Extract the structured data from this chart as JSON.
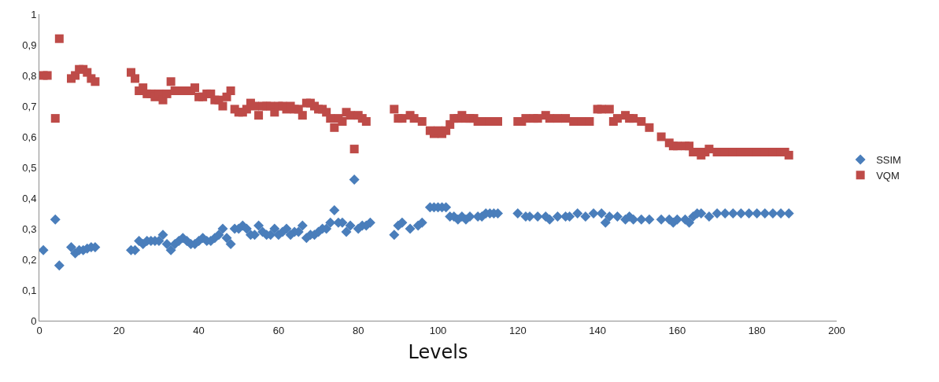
{
  "chart_data": {
    "type": "scatter",
    "xlabel": "Levels",
    "xlim": [
      0,
      200
    ],
    "xticks": [
      0,
      20,
      40,
      60,
      80,
      100,
      120,
      140,
      160,
      180,
      200
    ],
    "ylim": [
      0,
      1
    ],
    "yticks": [
      0,
      {
        "value": 0.1,
        "label": "0,1"
      },
      {
        "value": 0.2,
        "label": "0,2"
      },
      {
        "value": 0.3,
        "label": "0,3"
      },
      {
        "value": 0.4,
        "label": "0,4"
      },
      {
        "value": 0.5,
        "label": "0,5"
      },
      {
        "value": 0.6,
        "label": "0,6"
      },
      {
        "value": 0.7,
        "label": "0,7"
      },
      {
        "value": 0.8,
        "label": "0,8"
      },
      {
        "value": 0.9,
        "label": "0,9"
      },
      1
    ],
    "grid": false,
    "legend": "right",
    "series": [
      {
        "name": "SSIM",
        "color": "#4a7ebb",
        "marker": "diamond",
        "x": [
          1,
          4,
          5,
          8,
          9,
          10,
          11,
          12,
          13,
          14,
          23,
          24,
          25,
          26,
          27,
          28,
          29,
          30,
          31,
          32,
          33,
          34,
          35,
          36,
          37,
          38,
          39,
          40,
          41,
          42,
          43,
          44,
          45,
          46,
          47,
          48,
          49,
          50,
          51,
          52,
          53,
          54,
          55,
          56,
          57,
          58,
          59,
          60,
          61,
          62,
          63,
          64,
          65,
          66,
          67,
          68,
          69,
          70,
          71,
          72,
          73,
          74,
          75,
          76,
          77,
          78,
          79,
          80,
          81,
          82,
          83,
          89,
          90,
          91,
          93,
          95,
          96,
          98,
          99,
          100,
          101,
          102,
          103,
          104,
          105,
          106,
          107,
          108,
          110,
          111,
          112,
          113,
          114,
          115,
          120,
          122,
          123,
          125,
          127,
          128,
          130,
          132,
          133,
          135,
          137,
          139,
          141,
          142,
          143,
          145,
          147,
          148,
          149,
          151,
          153,
          156,
          158,
          159,
          160,
          162,
          163,
          164,
          165,
          166,
          168,
          170,
          172,
          174,
          176,
          178,
          180,
          182,
          184,
          186,
          188
        ],
        "values": [
          0.23,
          0.33,
          0.18,
          0.24,
          0.22,
          0.23,
          0.23,
          0.235,
          0.24,
          0.24,
          0.23,
          0.23,
          0.26,
          0.25,
          0.26,
          0.26,
          0.26,
          0.26,
          0.28,
          0.25,
          0.23,
          0.25,
          0.26,
          0.27,
          0.26,
          0.25,
          0.25,
          0.26,
          0.27,
          0.26,
          0.26,
          0.27,
          0.28,
          0.3,
          0.27,
          0.25,
          0.3,
          0.3,
          0.31,
          0.3,
          0.28,
          0.28,
          0.31,
          0.29,
          0.28,
          0.28,
          0.3,
          0.28,
          0.29,
          0.3,
          0.28,
          0.29,
          0.29,
          0.31,
          0.27,
          0.28,
          0.28,
          0.29,
          0.3,
          0.3,
          0.32,
          0.36,
          0.32,
          0.32,
          0.29,
          0.31,
          0.46,
          0.3,
          0.31,
          0.31,
          0.32,
          0.28,
          0.31,
          0.32,
          0.3,
          0.31,
          0.32,
          0.37,
          0.37,
          0.37,
          0.37,
          0.37,
          0.34,
          0.34,
          0.33,
          0.34,
          0.33,
          0.34,
          0.34,
          0.34,
          0.35,
          0.35,
          0.35,
          0.35,
          0.35,
          0.34,
          0.34,
          0.34,
          0.34,
          0.33,
          0.34,
          0.34,
          0.34,
          0.35,
          0.34,
          0.35,
          0.35,
          0.32,
          0.34,
          0.34,
          0.33,
          0.34,
          0.33,
          0.33,
          0.33,
          0.33,
          0.33,
          0.32,
          0.33,
          0.33,
          0.32,
          0.34,
          0.35,
          0.35,
          0.34,
          0.35,
          0.35,
          0.35,
          0.35,
          0.35,
          0.35,
          0.35,
          0.35,
          0.35,
          0.35
        ]
      },
      {
        "name": "VQM",
        "color": "#be4b48",
        "marker": "square",
        "x": [
          1,
          2,
          4,
          5,
          8,
          9,
          10,
          11,
          12,
          13,
          14,
          23,
          24,
          25,
          26,
          27,
          28,
          29,
          30,
          31,
          32,
          33,
          34,
          36,
          38,
          39,
          40,
          41,
          42,
          43,
          44,
          45,
          46,
          47,
          48,
          49,
          50,
          51,
          52,
          53,
          54,
          55,
          56,
          57,
          58,
          59,
          60,
          61,
          62,
          63,
          64,
          65,
          66,
          67,
          68,
          69,
          70,
          71,
          72,
          73,
          74,
          75,
          76,
          77,
          78,
          79,
          80,
          81,
          82,
          89,
          90,
          91,
          93,
          94,
          96,
          98,
          99,
          100,
          101,
          102,
          103,
          104,
          105,
          106,
          107,
          108,
          109,
          110,
          111,
          113,
          115,
          120,
          121,
          122,
          124,
          125,
          127,
          128,
          130,
          132,
          134,
          136,
          138,
          140,
          141,
          143,
          144,
          145,
          147,
          148,
          149,
          151,
          153,
          156,
          158,
          159,
          160,
          162,
          163,
          164,
          165,
          166,
          167,
          168,
          170,
          172,
          174,
          176,
          178,
          180,
          182,
          184,
          186,
          187,
          188
        ],
        "values": [
          0.8,
          0.8,
          0.66,
          0.92,
          0.79,
          0.8,
          0.82,
          0.82,
          0.81,
          0.79,
          0.78,
          0.81,
          0.79,
          0.75,
          0.76,
          0.74,
          0.74,
          0.73,
          0.74,
          0.72,
          0.74,
          0.78,
          0.75,
          0.75,
          0.75,
          0.76,
          0.73,
          0.73,
          0.74,
          0.74,
          0.72,
          0.72,
          0.7,
          0.73,
          0.75,
          0.69,
          0.68,
          0.68,
          0.69,
          0.71,
          0.7,
          0.67,
          0.7,
          0.7,
          0.7,
          0.68,
          0.7,
          0.7,
          0.69,
          0.7,
          0.69,
          0.69,
          0.67,
          0.71,
          0.71,
          0.7,
          0.69,
          0.69,
          0.68,
          0.66,
          0.63,
          0.66,
          0.65,
          0.68,
          0.67,
          0.56,
          0.67,
          0.66,
          0.65,
          0.69,
          0.66,
          0.66,
          0.67,
          0.66,
          0.65,
          0.62,
          0.61,
          0.62,
          0.61,
          0.62,
          0.64,
          0.66,
          0.66,
          0.67,
          0.66,
          0.66,
          0.66,
          0.65,
          0.65,
          0.65,
          0.65,
          0.65,
          0.65,
          0.66,
          0.66,
          0.66,
          0.67,
          0.66,
          0.66,
          0.66,
          0.65,
          0.65,
          0.65,
          0.69,
          0.69,
          0.69,
          0.65,
          0.66,
          0.67,
          0.66,
          0.66,
          0.65,
          0.63,
          0.6,
          0.58,
          0.57,
          0.57,
          0.57,
          0.57,
          0.55,
          0.55,
          0.54,
          0.55,
          0.56,
          0.55,
          0.55,
          0.55,
          0.55,
          0.55,
          0.55,
          0.55,
          0.55,
          0.55,
          0.55,
          0.54
        ]
      }
    ]
  }
}
